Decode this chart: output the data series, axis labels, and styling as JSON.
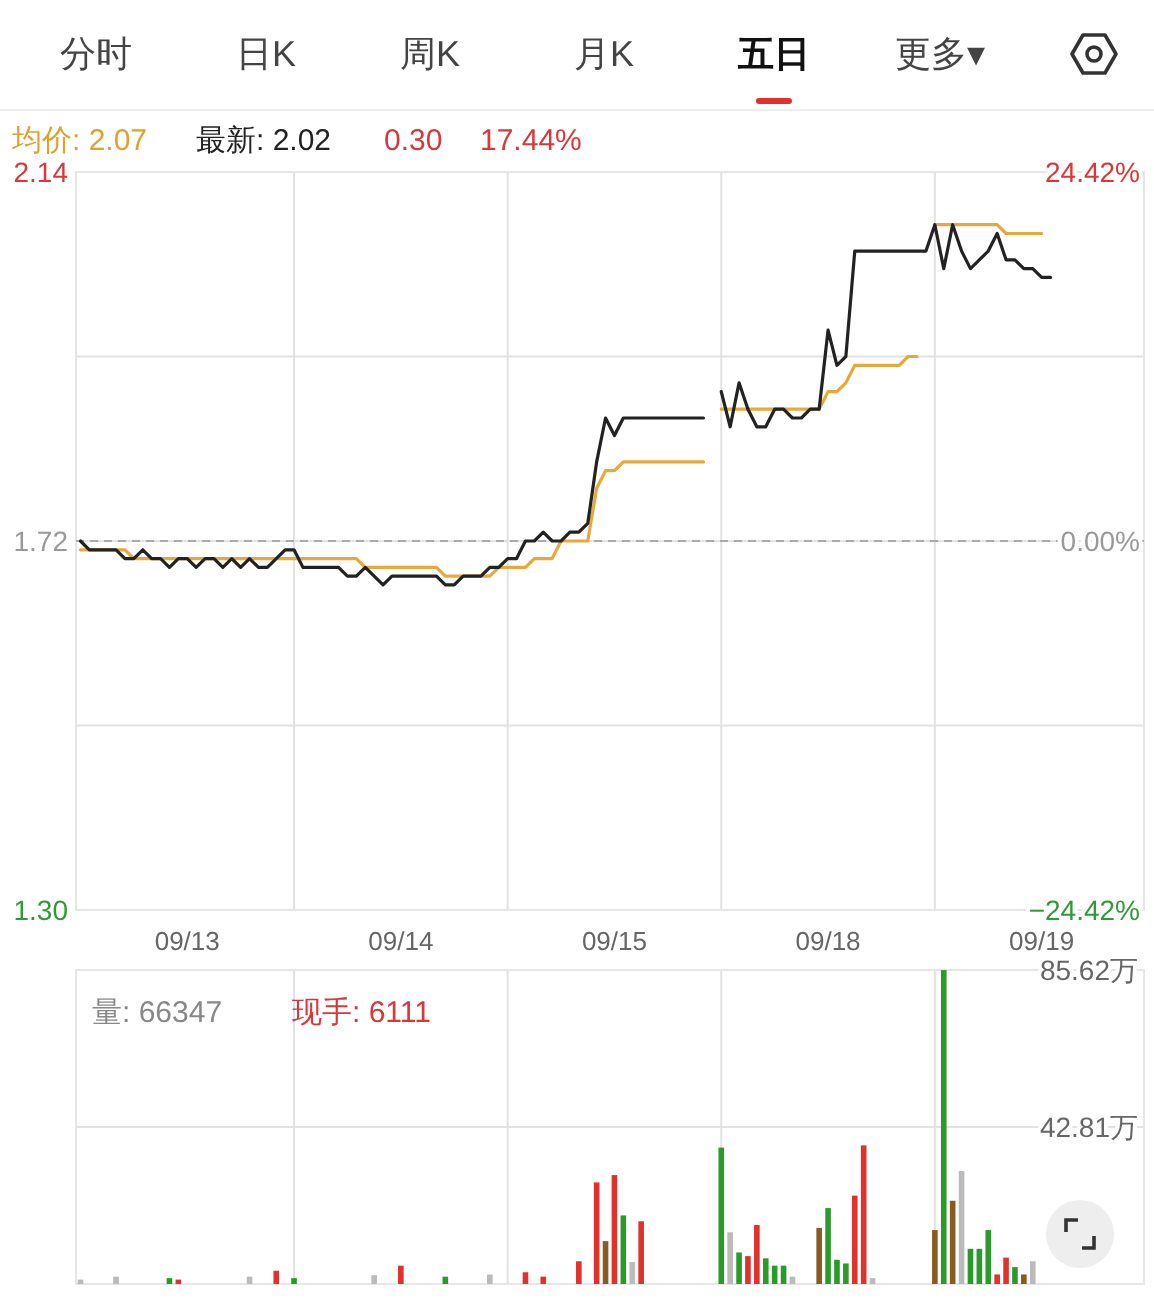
{
  "chart_data": [
    {
      "type": "line",
      "annotations": [
        "分时",
        "日K",
        "周K",
        "月K",
        "五日",
        "更多▾",
        "均价: 2.07",
        "最新: 2.02",
        "0.30",
        "17.44%"
      ],
      "categories": [
        null,
        null,
        null,
        null,
        null,
        null,
        null,
        null,
        null,
        null,
        null,
        null,
        "09/13",
        null,
        null,
        null,
        null,
        null,
        null,
        null,
        null,
        null,
        null,
        null,
        null,
        null,
        null,
        null,
        null,
        null,
        null,
        null,
        null,
        null,
        null,
        null,
        "09/14",
        null,
        null,
        null,
        null,
        null,
        null,
        null,
        null,
        null,
        null,
        null,
        null,
        null,
        null,
        null,
        null,
        null,
        null,
        null,
        null,
        null,
        null,
        null,
        "09/15",
        null,
        null,
        null,
        null,
        null,
        null,
        null,
        null,
        null,
        null,
        null,
        null,
        null,
        null,
        null,
        null,
        null,
        null,
        null,
        null,
        null,
        null,
        null,
        "09/18",
        null,
        null,
        null,
        null,
        null,
        null,
        null,
        null,
        null,
        null,
        null,
        null,
        null,
        null,
        null,
        null,
        null,
        null,
        null,
        null,
        null,
        null,
        null,
        "09/19",
        null,
        null,
        null,
        null,
        null,
        null,
        null,
        null,
        null,
        null,
        null
      ],
      "ylim": [
        1.3,
        2.14
      ],
      "yticks": [
        2.14,
        {
          "value": 1.93,
          "label": null
        },
        1.72,
        {
          "value": 1.51,
          "label": null
        },
        {
          "value": 1.3,
          "label": "1.30"
        }
      ],
      "y2lim": [
        -24.42,
        24.42
      ],
      "y2ticks": [
        {
          "value": 24.42,
          "label": "24.42%"
        },
        {
          "value": 0,
          "label": "0.00%"
        },
        {
          "value": -24.42,
          "label": "−24.42%"
        }
      ],
      "grid": true,
      "ref_lines": [
        {
          "axis": "y",
          "value": 1.72,
          "line_style": "dashed",
          "color": "#aaaaaa"
        }
      ],
      "series": [
        {
          "color": "#222222",
          "values": [
            1.72,
            1.71,
            1.71,
            1.71,
            1.71,
            1.7,
            1.7,
            1.71,
            1.7,
            1.7,
            1.69,
            1.7,
            1.7,
            1.69,
            1.7,
            1.7,
            1.69,
            1.7,
            1.69,
            1.7,
            1.69,
            1.69,
            1.7,
            1.71,
            1.71,
            1.69,
            1.69,
            1.69,
            1.69,
            1.69,
            1.68,
            1.68,
            1.69,
            1.68,
            1.67,
            1.68,
            1.68,
            1.68,
            1.68,
            1.68,
            1.68,
            1.67,
            1.67,
            1.68,
            1.68,
            1.68,
            1.69,
            1.69,
            1.7,
            1.7,
            1.72,
            1.72,
            1.73,
            1.72,
            1.72,
            1.73,
            1.73,
            1.74,
            1.81,
            1.86,
            1.84,
            1.86,
            1.86,
            1.86,
            1.86,
            1.86,
            1.86,
            1.86,
            1.86,
            1.86,
            1.86,
            null,
            1.89,
            1.85,
            1.9,
            1.87,
            1.85,
            1.85,
            1.87,
            1.87,
            1.86,
            1.86,
            1.87,
            1.87,
            1.96,
            1.92,
            1.93,
            2.05,
            2.05,
            2.05,
            2.05,
            2.05,
            2.05,
            2.05,
            2.05,
            2.05,
            2.08,
            2.03,
            2.08,
            2.05,
            2.03,
            2.04,
            2.05,
            2.07,
            2.04,
            2.04,
            2.03,
            2.03,
            2.02,
            2.02,
            null,
            null,
            null,
            null,
            null,
            null,
            null,
            null,
            null,
            null
          ]
        },
        {
          "color": "#e8a93c",
          "values": [
            1.71,
            1.71,
            1.71,
            1.71,
            1.71,
            1.71,
            1.7,
            1.7,
            1.7,
            1.7,
            1.7,
            1.7,
            1.7,
            1.7,
            1.7,
            1.7,
            1.7,
            1.7,
            1.7,
            1.7,
            1.7,
            1.7,
            1.7,
            1.7,
            1.7,
            1.7,
            1.7,
            1.7,
            1.7,
            1.7,
            1.7,
            1.7,
            1.69,
            1.69,
            1.69,
            1.69,
            1.69,
            1.69,
            1.69,
            1.69,
            1.69,
            1.68,
            1.68,
            1.68,
            1.68,
            1.68,
            1.68,
            1.69,
            1.69,
            1.69,
            1.69,
            1.7,
            1.7,
            1.7,
            1.72,
            1.72,
            1.72,
            1.72,
            1.78,
            1.8,
            1.8,
            1.81,
            1.81,
            1.81,
            1.81,
            1.81,
            1.81,
            1.81,
            1.81,
            1.81,
            1.81,
            null,
            1.87,
            1.87,
            1.87,
            1.87,
            1.87,
            1.87,
            1.87,
            1.87,
            1.87,
            1.87,
            1.87,
            1.87,
            1.89,
            1.89,
            1.9,
            1.92,
            1.92,
            1.92,
            1.92,
            1.92,
            1.92,
            1.93,
            1.93,
            null,
            2.08,
            2.08,
            2.08,
            2.08,
            2.08,
            2.08,
            2.08,
            2.08,
            2.07,
            2.07,
            2.07,
            2.07,
            2.07,
            null,
            null,
            null,
            null,
            null,
            null,
            null,
            null,
            null,
            null,
            null
          ]
        }
      ]
    },
    {
      "type": "bar",
      "annotations": [
        "量: 66347",
        "现手: 6111"
      ],
      "categories": [
        null,
        null,
        null,
        null,
        null,
        null,
        null,
        null,
        null,
        null,
        null,
        null,
        null,
        null,
        null,
        null,
        null,
        null,
        null,
        null,
        null,
        null,
        null,
        null,
        null,
        null,
        null,
        null,
        null,
        null,
        null,
        null,
        null,
        null,
        null,
        null,
        null,
        null,
        null,
        null,
        null,
        null,
        null,
        null,
        null,
        null,
        null,
        null,
        null,
        null,
        null,
        null,
        null,
        null,
        null,
        null,
        null,
        null,
        null,
        null,
        null,
        null,
        null,
        null,
        null,
        null,
        null,
        null,
        null,
        null,
        null,
        null,
        null,
        null,
        null,
        null,
        null,
        null,
        null,
        null,
        null,
        null,
        null,
        null,
        null,
        null,
        null,
        null,
        null,
        null,
        null,
        null,
        null,
        null,
        null,
        null,
        null,
        null,
        null,
        null,
        null,
        null,
        null,
        null,
        null,
        null,
        null,
        null,
        null,
        null,
        null,
        null,
        null,
        null,
        null,
        null,
        null,
        null,
        null,
        null
      ],
      "ylim": [
        0,
        85.62
      ],
      "yticks": [
        {
          "value": 42.81,
          "label": "42.81万"
        },
        {
          "value": 85.62,
          "label": "85.62万"
        }
      ],
      "tick_labels": "y",
      "grid": true,
      "values": [
        1.2,
        null,
        null,
        null,
        2.0,
        null,
        null,
        null,
        null,
        null,
        1.6,
        1.2,
        null,
        null,
        null,
        null,
        null,
        null,
        null,
        2.0,
        null,
        null,
        3.6,
        null,
        1.6,
        null,
        null,
        null,
        null,
        null,
        null,
        null,
        null,
        2.4,
        null,
        null,
        5.0,
        null,
        null,
        null,
        null,
        2.0,
        null,
        null,
        null,
        null,
        2.6,
        null,
        null,
        null,
        3.2,
        null,
        2.0,
        null,
        null,
        null,
        6.2,
        null,
        27.7,
        11.7,
        29.7,
        18.7,
        6.0,
        17.1,
        null,
        null,
        null,
        null,
        null,
        null,
        null,
        null,
        37.2,
        14.1,
        8.6,
        7.6,
        16.1,
        7.0,
        5.0,
        5.0,
        2.0,
        null,
        null,
        15.3,
        20.7,
        6.6,
        5.6,
        24.1,
        37.8,
        1.6,
        null,
        null,
        null,
        null,
        null,
        null,
        14.7,
        85.6,
        22.7,
        30.8,
        9.6,
        9.6,
        14.7,
        2.6,
        7.2,
        4.6,
        2.6,
        6.2,
        null,
        null,
        null,
        null,
        null,
        null,
        null,
        null,
        null,
        null,
        null,
        null
      ],
      "colors": [
        "#bbbbbb",
        null,
        null,
        null,
        "#bbbbbb",
        null,
        null,
        null,
        null,
        null,
        "#2a9a2a",
        "#e0312c",
        null,
        null,
        null,
        null,
        null,
        null,
        null,
        "#bbbbbb",
        null,
        null,
        "#e0312c",
        null,
        "#2a9a2a",
        null,
        null,
        null,
        null,
        null,
        null,
        null,
        null,
        "#bbbbbb",
        null,
        null,
        "#e0312c",
        null,
        null,
        null,
        null,
        "#2a9a2a",
        null,
        null,
        null,
        null,
        "#bbbbbb",
        null,
        null,
        null,
        "#e0312c",
        null,
        "#e0312c",
        null,
        null,
        null,
        "#e0312c",
        null,
        "#e0312c",
        "#8a5a20",
        "#e0312c",
        "#2a9a2a",
        "#bbbbbb",
        "#e0312c",
        null,
        null,
        null,
        null,
        null,
        null,
        null,
        null,
        "#2a9a2a",
        "#bbbbbb",
        "#2a9a2a",
        "#e0312c",
        "#e0312c",
        "#2a9a2a",
        "#2a9a2a",
        "#2a9a2a",
        "#bbbbbb",
        null,
        null,
        "#8a5a20",
        "#2a9a2a",
        "#2a9a2a",
        "#2a9a2a",
        "#e0312c",
        "#e0312c",
        "#bbbbbb",
        null,
        null,
        null,
        null,
        null,
        null,
        "#8a5a20",
        "#2a9a2a",
        "#8a5a20",
        "#bbbbbb",
        "#2a9a2a",
        "#2a9a2a",
        "#2a9a2a",
        "#e0312c",
        "#e0312c",
        "#2a9a2a",
        "#8a5a20",
        "#bbbbbb",
        null,
        null,
        null,
        null,
        null,
        null,
        null,
        null,
        null,
        null,
        null,
        null
      ]
    }
  ]
}
